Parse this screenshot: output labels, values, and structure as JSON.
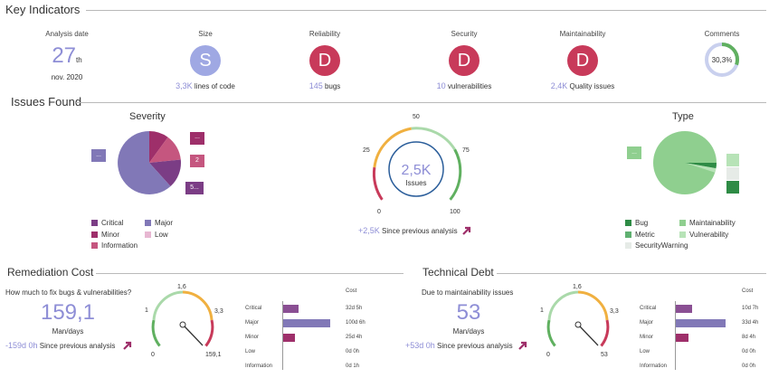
{
  "colors": {
    "accent": "#8e8ed6",
    "size_grade": "#9fa8e3",
    "bad_grade": "#c83a5a",
    "critical": "#7b3d85",
    "major": "#8178b7",
    "minor": "#9e2f6a",
    "low": "#e7b7d2",
    "information": "#c5567f",
    "bug": "#2e8b45",
    "maintainability": "#8fcf8f",
    "metric": "#5fb070",
    "vulnerability": "#b7e3b7",
    "securitywarning": "#e6ebe7",
    "gauge_green": "#60b060",
    "gauge_lightgreen": "#aad9aa",
    "gauge_orange": "#f0b040",
    "gauge_red": "#c83a5a",
    "gauge_blue": "#2a5d9a"
  },
  "key_indicators": {
    "title": "Key Indicators",
    "analysis_date": {
      "label": "Analysis date",
      "day": "27",
      "suffix": "th",
      "month": "nov. 2020"
    },
    "size": {
      "label": "Size",
      "grade": "S",
      "value": "3,3K",
      "unit": "lines of code"
    },
    "reliability": {
      "label": "Reliability",
      "grade": "D",
      "value": "145",
      "unit": "bugs"
    },
    "security": {
      "label": "Security",
      "grade": "D",
      "value": "10",
      "unit": "vulnerabilities"
    },
    "maintainability": {
      "label": "Maintainability",
      "grade": "D",
      "value": "2,4K",
      "unit": "Quality issues"
    },
    "comments": {
      "label": "Comments",
      "value": "30,3%",
      "fraction": 0.303
    }
  },
  "issues_found": {
    "title": "Issues Found",
    "severity": {
      "title": "Severity",
      "boxes": [
        "...",
        "...",
        "2",
        "5..."
      ],
      "legend": [
        "Critical",
        "Major",
        "Minor",
        "Low",
        "Information"
      ]
    },
    "gauge": {
      "ticks": [
        "0",
        "25",
        "50",
        "75",
        "100"
      ],
      "value": "2,5K",
      "label": "Issues",
      "delta": "+2,5K",
      "delta_label": "Since previous analysis"
    },
    "type": {
      "title": "Type",
      "boxes": [
        "..."
      ],
      "legend": [
        "Bug",
        "Maintainability",
        "Metric",
        "Vulnerability",
        "SecurityWarning"
      ]
    }
  },
  "remediation_cost": {
    "title": "Remediation Cost",
    "question": "How much to fix bugs & vulnerabilities?",
    "value": "159,1",
    "unit": "Man/days",
    "delta": "-159d 0h",
    "delta_label": "Since previous analysis",
    "gauge_ticks": [
      "0",
      "1",
      "1,6",
      "3,3",
      "159,1"
    ],
    "cost_header": "Cost",
    "rows": [
      {
        "label": "Critical",
        "cost": "32d 5h",
        "fraction": 0.32
      },
      {
        "label": "Major",
        "cost": "100d 6h",
        "fraction": 1.0
      },
      {
        "label": "Minor",
        "cost": "25d 4h",
        "fraction": 0.25
      },
      {
        "label": "Low",
        "cost": "0d 0h",
        "fraction": 0.0
      },
      {
        "label": "Information",
        "cost": "0d 1h",
        "fraction": 0.0
      }
    ]
  },
  "technical_debt": {
    "title": "Technical Debt",
    "question": "Due to maintainability issues",
    "value": "53",
    "unit": "Man/days",
    "delta": "+53d 0h",
    "delta_label": "Since previous analysis",
    "gauge_ticks": [
      "0",
      "1",
      "1,6",
      "3,3",
      "53"
    ],
    "cost_header": "Cost",
    "rows": [
      {
        "label": "Critical",
        "cost": "10d 7h",
        "fraction": 0.33
      },
      {
        "label": "Major",
        "cost": "33d 4h",
        "fraction": 1.0
      },
      {
        "label": "Minor",
        "cost": "8d 4h",
        "fraction": 0.25
      },
      {
        "label": "Low",
        "cost": "0d 0h",
        "fraction": 0.0
      },
      {
        "label": "Information",
        "cost": "0d 0h",
        "fraction": 0.0
      }
    ]
  }
}
